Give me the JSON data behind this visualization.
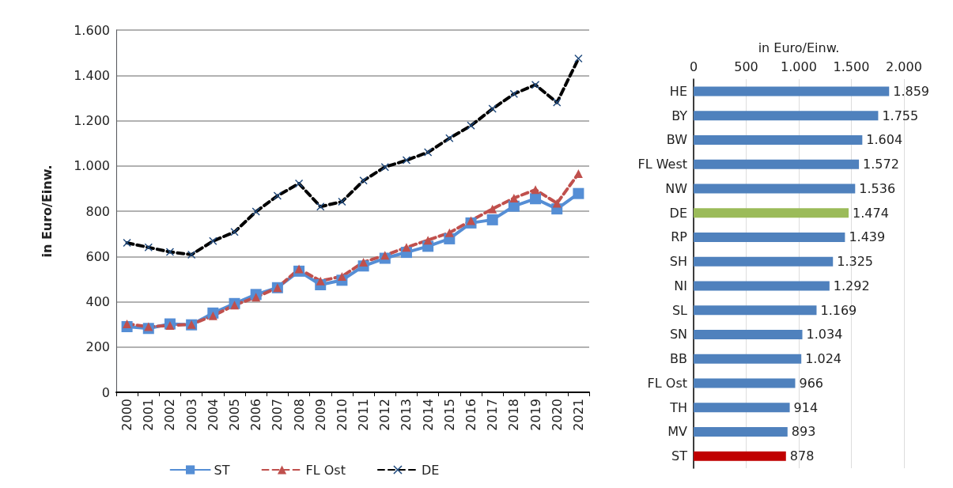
{
  "chart_data": [
    {
      "type": "line",
      "ylabel": "in Euro/Einw.",
      "categories": [
        "2000",
        "2001",
        "2002",
        "2003",
        "2004",
        "2005",
        "2006",
        "2007",
        "2008",
        "2009",
        "2010",
        "2011",
        "2012",
        "2013",
        "2014",
        "2015",
        "2016",
        "2017",
        "2018",
        "2019",
        "2020",
        "2021"
      ],
      "series": [
        {
          "name": "ST",
          "color": "#558ed5",
          "marker": "square",
          "line_style": "solid",
          "values": [
            290,
            282,
            302,
            298,
            350,
            392,
            432,
            462,
            535,
            475,
            495,
            558,
            592,
            618,
            645,
            678,
            748,
            762,
            822,
            855,
            810,
            878
          ]
        },
        {
          "name": "FL Ost",
          "color": "#c0504d",
          "marker": "triangle",
          "line_style": "dashed",
          "values": [
            302,
            290,
            295,
            300,
            338,
            385,
            420,
            462,
            545,
            492,
            512,
            575,
            605,
            640,
            672,
            705,
            758,
            810,
            858,
            895,
            835,
            966
          ]
        },
        {
          "name": "DE",
          "color": "#000000",
          "marker": "cross",
          "line_style": "dashed",
          "values": [
            660,
            640,
            620,
            608,
            668,
            708,
            798,
            868,
            922,
            820,
            842,
            935,
            995,
            1025,
            1060,
            1122,
            1178,
            1252,
            1318,
            1358,
            1280,
            1474
          ]
        }
      ],
      "ylim": [
        0,
        1600
      ],
      "yticks": [
        0,
        200,
        400,
        600,
        800,
        {
          "value": 1000,
          "label": "1.000"
        },
        {
          "value": 1200,
          "label": "1.200"
        },
        {
          "value": 1400,
          "label": "1.400"
        },
        {
          "value": 1600,
          "label": "1.600"
        }
      ],
      "grid": "y",
      "legend": "bottom"
    },
    {
      "type": "bar",
      "orientation": "horizontal",
      "xlabel": "in Euro/Einw.",
      "categories": [
        "HE",
        "BY",
        "BW",
        "FL West",
        "NW",
        "DE",
        "RP",
        "SH",
        "NI",
        "SL",
        "SN",
        "BB",
        "FL Ost",
        "TH",
        "MV",
        "ST"
      ],
      "values": [
        1859,
        1755,
        1604,
        1572,
        1536,
        1474,
        1439,
        1325,
        1292,
        1169,
        1034,
        1024,
        966,
        914,
        893,
        878
      ],
      "colors": [
        "#4f81bd",
        "#4f81bd",
        "#4f81bd",
        "#4f81bd",
        "#4f81bd",
        "#9bbb59",
        "#4f81bd",
        "#4f81bd",
        "#4f81bd",
        "#4f81bd",
        "#4f81bd",
        "#4f81bd",
        "#4f81bd",
        "#4f81bd",
        "#4f81bd",
        "#c00000"
      ],
      "value_labels": [
        "1.859",
        "1.755",
        "1.604",
        "1.572",
        "1.536",
        "1.474",
        "1.439",
        "1.325",
        "1.292",
        "1.169",
        "1.034",
        "1.024",
        "966",
        "914",
        "893",
        "878"
      ],
      "xlim": [
        0,
        2000
      ],
      "xticks": [
        0,
        500,
        {
          "value": 1000,
          "label": "1.000"
        },
        {
          "value": 1500,
          "label": "1.500"
        },
        {
          "value": 2000,
          "label": "2.000"
        }
      ],
      "grid": "x"
    }
  ]
}
